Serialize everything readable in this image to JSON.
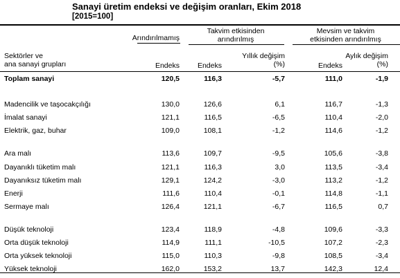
{
  "title": "Sanayi üretim endeksi ve değişim oranları, Ekim 2018",
  "subtitle": "[2015=100]",
  "header": {
    "group_unadjusted": "Arındırılmamış",
    "group_calendar_line1": "Takvim etkisinden",
    "group_calendar_line2": "arındırılmış",
    "group_seasonal_line1": "Mevsim ve takvim",
    "group_seasonal_line2": "etkisinden arındırılmış",
    "row_label_line1": "Sektörler ve",
    "row_label_line2": "ana sanayi grupları",
    "col_index_1": "Endeks",
    "col_index_2": "Endeks",
    "col_annual_line1": "Yıllık değişim",
    "col_annual_line2": "(%)",
    "col_index_3": "Endeks",
    "col_monthly_line1": "Aylık değişim",
    "col_monthly_line2": "(%)"
  },
  "rows": [
    {
      "label": "Toplam sanayi",
      "v1": "120,5",
      "v2": "116,3",
      "v3": "-5,7",
      "v4": "111,0",
      "v5": "-1,9",
      "bold": true
    },
    {
      "label": "Madencilik ve taşocakçılığı",
      "v1": "130,0",
      "v2": "126,6",
      "v3": "6,1",
      "v4": "116,7",
      "v5": "-1,3"
    },
    {
      "label": "İmalat sanayi",
      "v1": "121,1",
      "v2": "116,5",
      "v3": "-6,5",
      "v4": "110,4",
      "v5": "-2,0"
    },
    {
      "label": "Elektrik, gaz, buhar",
      "v1": "109,0",
      "v2": "108,1",
      "v3": "-1,2",
      "v4": "114,6",
      "v5": "-1,2"
    },
    {
      "label": "Ara malı",
      "v1": "113,6",
      "v2": "109,7",
      "v3": "-9,5",
      "v4": "105,6",
      "v5": "-3,8"
    },
    {
      "label": "Dayanıklı tüketim malı",
      "v1": "121,1",
      "v2": "116,3",
      "v3": "3,0",
      "v4": "113,5",
      "v5": "-3,4"
    },
    {
      "label": "Dayanıksız tüketim malı",
      "v1": "129,1",
      "v2": "124,2",
      "v3": "-3,0",
      "v4": "113,2",
      "v5": "-1,2"
    },
    {
      "label": "Enerji",
      "v1": "111,6",
      "v2": "110,4",
      "v3": "-0,1",
      "v4": "114,8",
      "v5": "-1,1"
    },
    {
      "label": "Sermaye malı",
      "v1": "126,4",
      "v2": "121,1",
      "v3": "-6,7",
      "v4": "116,5",
      "v5": "0,7"
    },
    {
      "label": "Düşük teknoloji",
      "v1": "123,4",
      "v2": "118,9",
      "v3": "-4,8",
      "v4": "109,6",
      "v5": "-3,3"
    },
    {
      "label": "Orta düşük teknoloji",
      "v1": "114,9",
      "v2": "111,1",
      "v3": "-10,5",
      "v4": "107,2",
      "v5": "-2,3"
    },
    {
      "label": "Orta yüksek teknoloji",
      "v1": "115,0",
      "v2": "110,3",
      "v3": "-9,8",
      "v4": "108,5",
      "v5": "-3,4"
    },
    {
      "label": "Yüksek teknoloji",
      "v1": "162,0",
      "v2": "153,2",
      "v3": "13,7",
      "v4": "142,3",
      "v5": "12,4"
    }
  ]
}
